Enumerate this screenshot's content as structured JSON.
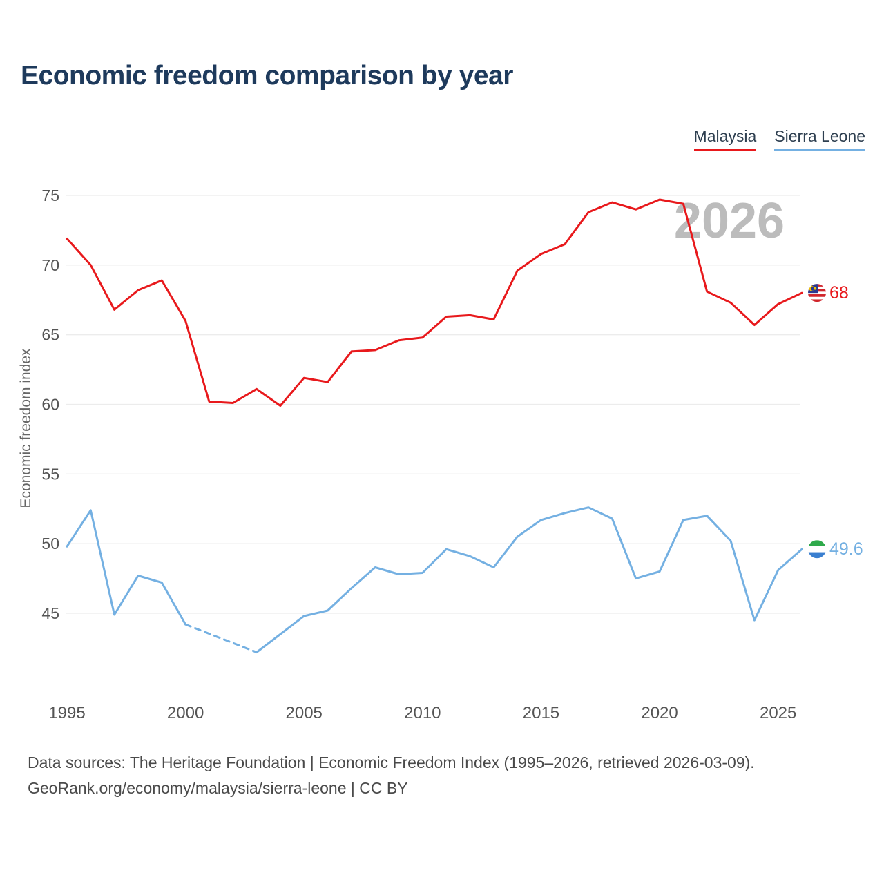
{
  "chart_data": {
    "type": "line",
    "title": "Economic freedom comparison by year",
    "ylabel": "Economic freedom index",
    "xlabel": "",
    "watermark": "2026",
    "grid": "horizontal",
    "legend_position": "top-right",
    "x_ticks": [
      1995,
      2000,
      2005,
      2010,
      2015,
      2020,
      2025
    ],
    "y_ticks": [
      45,
      50,
      55,
      60,
      65,
      70,
      75
    ],
    "xlim": [
      1995,
      2026
    ],
    "ylim": [
      38.5,
      76.5
    ],
    "colors": {
      "malaysia": "#e8191c",
      "sierra_leone": "#74b0e2",
      "watermark": "#bcbcbc",
      "grid": "#ececec",
      "tick_text": "#555555",
      "title_text": "#1e3a5c"
    },
    "x": [
      1995,
      1996,
      1997,
      1998,
      1999,
      2000,
      2001,
      2002,
      2003,
      2004,
      2005,
      2006,
      2007,
      2008,
      2009,
      2010,
      2011,
      2012,
      2013,
      2014,
      2015,
      2016,
      2017,
      2018,
      2019,
      2020,
      2021,
      2022,
      2023,
      2024,
      2025,
      2026
    ],
    "series": [
      {
        "name": "Malaysia",
        "color": "#e8191c",
        "end_label": "68",
        "flag_icon": "malaysia-flag-icon",
        "values": [
          71.9,
          70.0,
          66.8,
          68.2,
          68.9,
          66.0,
          60.2,
          60.1,
          61.1,
          59.9,
          61.9,
          61.6,
          63.8,
          63.9,
          64.6,
          64.8,
          66.3,
          66.4,
          66.1,
          69.6,
          70.8,
          71.5,
          73.8,
          74.5,
          74.0,
          74.7,
          74.4,
          68.1,
          67.3,
          65.7,
          67.2,
          68.0
        ]
      },
      {
        "name": "Sierra Leone",
        "color": "#74b0e2",
        "end_label": "49.6",
        "flag_icon": "sierra-leone-flag-icon",
        "missing_data_style": "dashed",
        "values": [
          49.8,
          52.4,
          44.9,
          47.7,
          47.2,
          44.2,
          null,
          null,
          42.2,
          43.5,
          44.8,
          45.2,
          46.8,
          48.3,
          47.8,
          47.9,
          49.6,
          49.1,
          48.3,
          50.5,
          51.7,
          52.2,
          52.6,
          51.8,
          47.5,
          48.0,
          51.7,
          52.0,
          50.2,
          44.5,
          48.1,
          49.6
        ]
      }
    ]
  },
  "footer": {
    "line1": "Data sources: The Heritage Foundation | Economic Freedom Index (1995–2026, retrieved 2026-03-09).",
    "line2": "GeoRank.org/economy/malaysia/sierra-leone | CC BY"
  }
}
